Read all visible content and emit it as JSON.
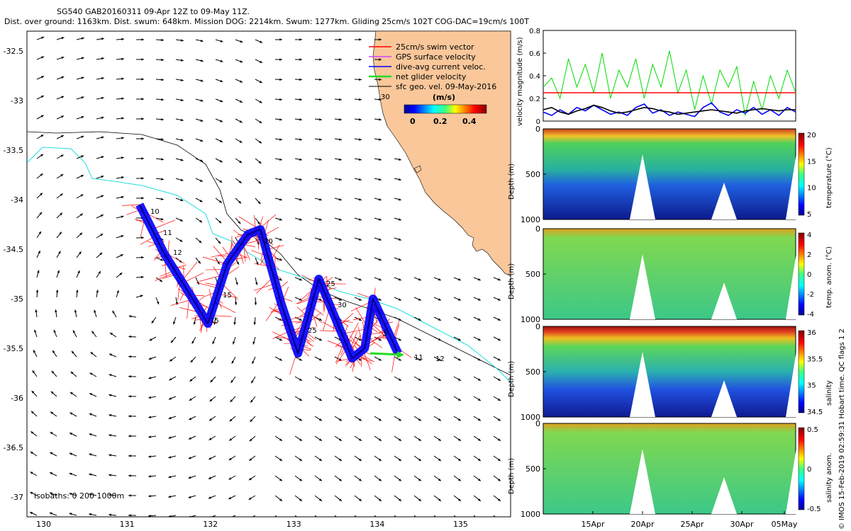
{
  "header": {
    "line1": "SG540 GAB20160311 09-Apr 12Z to 09-May 11Z.",
    "line2": "Dist. over ground: 1163km. Dist. swum: 648km. Mission DOG: 2214km. Swum: 1277km. Gliding 25cm/s 102T COG-DAC=19cm/s 100T"
  },
  "map": {
    "x_ticks": [
      "130",
      "131",
      "132",
      "133",
      "134",
      "135"
    ],
    "y_ticks": [
      "-32.5",
      "-33",
      "-33.5",
      "-34",
      "-34.5",
      "-35",
      "-35.5",
      "-36",
      "-36.5",
      "-37"
    ],
    "isobaths_label": "isobaths: 0  200  1000m",
    "legend": [
      {
        "label": "25cm/s swim vector",
        "color": "#ff0000"
      },
      {
        "label": "GPS surface velocity",
        "color": "#cc44ff"
      },
      {
        "label": "dive-avg current veloc.",
        "color": "#0000ff"
      },
      {
        "label": "net glider velocity",
        "color": "#22dd22"
      },
      {
        "label": "sfc geo. vel. 09-May-2016",
        "color": "#000000"
      }
    ],
    "colorbar_title": "(m/s)",
    "colorbar_ticks": [
      "0",
      "0.2",
      "0.4"
    ],
    "track_day_labels": [
      "10",
      "11",
      "12",
      "15",
      "15",
      "20",
      "25",
      "25",
      "30",
      "5",
      "11",
      "12",
      "30"
    ],
    "colors": {
      "land": "#f9c79a",
      "track": "#ff0000",
      "dac": "#0000ff",
      "isobath200": "#22dddd"
    }
  },
  "velocity_panel": {
    "ylabel": "velocity magnitude (m/s)",
    "y_ticks": [
      "0",
      "0.2",
      "0.4",
      "0.6",
      "0.8"
    ]
  },
  "sections": [
    {
      "cbar_label": "temperature (°C)",
      "cbar_ticks": [
        "5",
        "10",
        "15",
        "20"
      ]
    },
    {
      "cbar_label": "temp. anom. (°C)",
      "cbar_ticks": [
        "-4",
        "-2",
        "0",
        "2",
        "4"
      ]
    },
    {
      "cbar_label": "salinity",
      "cbar_ticks": [
        "34.5",
        "35",
        "35.5",
        "36"
      ]
    },
    {
      "cbar_label": "salinity anom.",
      "cbar_ticks": [
        "-0.5",
        "0",
        "0.5"
      ]
    }
  ],
  "depth_label": "Depth (m)",
  "depth_ticks": [
    "0",
    "500",
    "1000"
  ],
  "time_ticks": [
    "15Apr",
    "20Apr",
    "25Apr",
    "30Apr",
    "05May"
  ],
  "side_note": "© IMOS 15-Feb-2019 02:59:31 Hobart time. QC flags 1  2",
  "chart_data": [
    {
      "type": "scatter",
      "title": "SG540 GAB20160311 09-Apr 12Z to 09-May 11Z.",
      "xlim": [
        129.8,
        135.6
      ],
      "ylim": [
        -37.2,
        -32.3
      ],
      "track": {
        "x": [
          131.15,
          131.45,
          131.75,
          131.97,
          132.2,
          132.45,
          132.6,
          132.85,
          133.05,
          133.2,
          133.3,
          133.55,
          133.7,
          133.85,
          133.95,
          134.25
        ],
        "y": [
          -34.05,
          -34.55,
          -34.95,
          -35.25,
          -34.65,
          -34.35,
          -34.3,
          -35.05,
          -35.55,
          -35.1,
          -34.8,
          -35.3,
          -35.6,
          -35.5,
          -35.0,
          -35.55
        ]
      }
    },
    {
      "type": "line",
      "ylabel": "velocity magnitude (m/s)",
      "ylim": [
        0,
        0.8
      ],
      "series": [
        {
          "color": "#00dd00",
          "values": [
            0.3,
            0.38,
            0.2,
            0.55,
            0.3,
            0.5,
            0.25,
            0.6,
            0.2,
            0.45,
            0.3,
            0.55,
            0.2,
            0.5,
            0.3,
            0.62,
            0.25,
            0.45,
            0.1,
            0.4,
            0.15,
            0.45,
            0.3,
            0.48,
            0.05,
            0.35,
            0.1,
            0.4,
            0.2,
            0.45,
            0.25
          ]
        },
        {
          "color": "#0000ff",
          "values": [
            0.08,
            0.05,
            0.1,
            0.06,
            0.12,
            0.09,
            0.14,
            0.1,
            0.06,
            0.08,
            0.05,
            0.12,
            0.15,
            0.07,
            0.1,
            0.05,
            0.08,
            0.06,
            0.04,
            0.12,
            0.16,
            0.08,
            0.05,
            0.1,
            0.07,
            0.12,
            0.06,
            0.1,
            0.05,
            0.12,
            0.08
          ]
        },
        {
          "color": "#000000",
          "values": [
            0.1,
            0.12,
            0.08,
            0.06,
            0.09,
            0.11,
            0.14,
            0.12,
            0.09,
            0.07,
            0.08,
            0.1,
            0.12,
            0.11,
            0.09,
            0.08,
            0.06,
            0.07,
            0.08,
            0.09,
            0.1,
            0.09,
            0.08,
            0.07,
            0.09,
            0.1,
            0.11,
            0.1,
            0.09,
            0.1,
            0.1
          ]
        },
        {
          "color": "#ff0000",
          "values": [
            0.25,
            0.25
          ]
        }
      ]
    }
  ]
}
